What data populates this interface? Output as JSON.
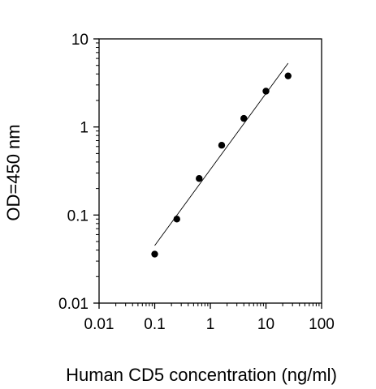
{
  "chart_data": {
    "type": "scatter",
    "title": "",
    "xlabel": "Human CD5 concentration (ng/ml)",
    "ylabel": "OD=450 nm",
    "xscale": "log",
    "yscale": "log",
    "xlim": [
      0.01,
      100
    ],
    "ylim": [
      0.01,
      10
    ],
    "x_ticks": [
      0.01,
      0.1,
      1,
      10,
      100
    ],
    "x_tick_labels": [
      "0.01",
      "0.1",
      "1",
      "10",
      "100"
    ],
    "y_ticks": [
      0.01,
      0.1,
      1,
      10
    ],
    "y_tick_labels": [
      "0.01",
      "0.1",
      "1",
      "10"
    ],
    "grid": false,
    "series": [
      {
        "points": [
          {
            "x": 0.1,
            "y": 0.036
          },
          {
            "x": 0.25,
            "y": 0.09
          },
          {
            "x": 0.63,
            "y": 0.26
          },
          {
            "x": 1.6,
            "y": 0.62
          },
          {
            "x": 4.0,
            "y": 1.25
          },
          {
            "x": 10.0,
            "y": 2.55
          },
          {
            "x": 25.0,
            "y": 3.8
          }
        ],
        "marker_color": "#000000"
      }
    ],
    "fit_line": {
      "x_start": 0.1,
      "y_start": 0.045,
      "x_end": 25.0,
      "y_end": 5.3,
      "color": "#000000"
    }
  }
}
